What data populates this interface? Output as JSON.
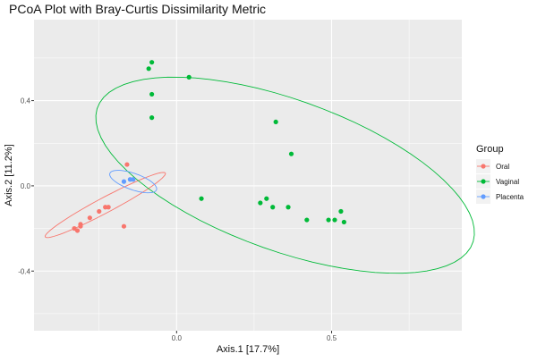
{
  "chart_data": {
    "type": "scatter",
    "title": "PCoA Plot with Bray-Curtis Dissimilarity Metric",
    "xlabel": "Axis.1   [17.7%]",
    "ylabel": "Axis.2   [11.2%]",
    "xlim": [
      -0.46,
      0.92
    ],
    "ylim": [
      -0.68,
      0.78
    ],
    "x_ticks": [
      0.0,
      0.5
    ],
    "x_tick_labels": [
      "0.0",
      "0.5"
    ],
    "y_ticks": [
      -0.4,
      0.0,
      0.4
    ],
    "y_tick_labels": [
      "-0.4",
      "0.0",
      "0.4"
    ],
    "grid": true,
    "legend_title": "Group",
    "legend_position": "right",
    "series": [
      {
        "name": "Oral",
        "color": "#F8766D",
        "x": [
          -0.16,
          -0.33,
          -0.32,
          -0.31,
          -0.31,
          -0.28,
          -0.25,
          -0.23,
          -0.22,
          -0.17
        ],
        "y": [
          0.1,
          -0.2,
          -0.21,
          -0.19,
          -0.18,
          -0.15,
          -0.12,
          -0.1,
          -0.1,
          -0.19
        ],
        "ellipse": {
          "center": [
            -0.23,
            -0.09
          ],
          "semi_major": 0.245,
          "semi_minor": 0.032,
          "angle_deg": 38
        }
      },
      {
        "name": "Vaginal",
        "color": "#00BA38",
        "x": [
          -0.09,
          -0.08,
          -0.08,
          -0.08,
          0.04,
          0.32,
          0.37,
          0.08,
          0.29,
          0.27,
          0.31,
          0.36,
          0.42,
          0.49,
          0.51,
          0.53,
          0.54
        ],
        "y": [
          0.55,
          0.58,
          0.43,
          0.32,
          0.51,
          0.3,
          0.15,
          -0.06,
          -0.06,
          -0.08,
          -0.1,
          -0.1,
          -0.16,
          -0.16,
          -0.16,
          -0.12,
          -0.17
        ],
        "ellipse": {
          "center": [
            0.35,
            0.05
          ],
          "semi_major": 0.69,
          "semi_minor": 0.33,
          "angle_deg": -32
        }
      },
      {
        "name": "Placenta",
        "color": "#619CFF",
        "x": [
          -0.17,
          -0.15,
          -0.14
        ],
        "y": [
          0.02,
          0.03,
          0.03
        ],
        "ellipse": {
          "center": [
            -0.14,
            0.02
          ],
          "semi_major": 0.085,
          "semi_minor": 0.036,
          "angle_deg": -30
        }
      }
    ]
  }
}
